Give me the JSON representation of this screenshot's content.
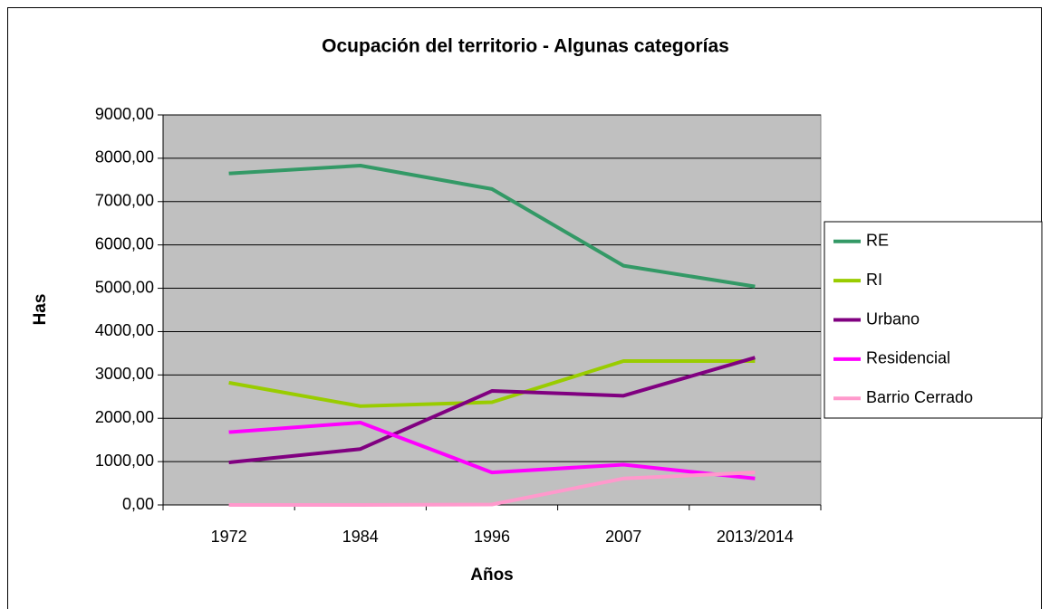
{
  "chart_data": {
    "type": "line",
    "title": "Ocupación del territorio - Algunas categorías",
    "x_label": "Años",
    "y_label": "Has",
    "categories": [
      "1972",
      "1984",
      "1996",
      "2007",
      "2013/2014"
    ],
    "series": [
      {
        "name": "RE",
        "color": "#339966",
        "values": [
          7650,
          7830,
          7290,
          5520,
          5040
        ]
      },
      {
        "name": "RI",
        "color": "#99cc00",
        "values": [
          2820,
          2280,
          2370,
          3320,
          3320
        ]
      },
      {
        "name": "Urbano",
        "color": "#800080",
        "values": [
          980,
          1290,
          2630,
          2520,
          3400
        ]
      },
      {
        "name": "Residencial",
        "color": "#ff00ff",
        "values": [
          1680,
          1900,
          750,
          930,
          610
        ]
      },
      {
        "name": "Barrio Cerrado",
        "color": "#ff99cc",
        "values": [
          0,
          0,
          10,
          610,
          750
        ]
      }
    ],
    "ylim": [
      0,
      9000
    ],
    "yticks": [
      {
        "value": 0,
        "label": "0,00"
      },
      {
        "value": 1000,
        "label": "1000,00"
      },
      {
        "value": 2000,
        "label": "2000,00"
      },
      {
        "value": 3000,
        "label": "3000,00"
      },
      {
        "value": 4000,
        "label": "4000,00"
      },
      {
        "value": 5000,
        "label": "5000,00"
      },
      {
        "value": 6000,
        "label": "6000,00"
      },
      {
        "value": 7000,
        "label": "7000,00"
      },
      {
        "value": 8000,
        "label": "8000,00"
      },
      {
        "value": 9000,
        "label": "9000,00"
      }
    ],
    "grid": true,
    "legend": "right",
    "plot_background": "#c0c0c0"
  }
}
